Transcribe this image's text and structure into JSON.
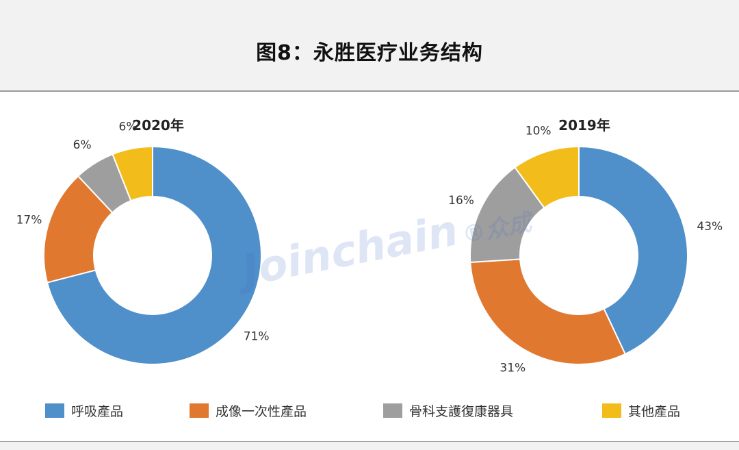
{
  "title": "图8：永胜医疗业务结构",
  "watermark": {
    "text": "Joinchain",
    "mark": "®众成"
  },
  "colors": {
    "blue": "#4f8fca",
    "orange": "#e1782f",
    "gray": "#9e9e9e",
    "yellow": "#f2bc1a"
  },
  "chart_data": [
    {
      "type": "pie",
      "title": "2020年",
      "categories": [
        "呼吸產品",
        "成像一次性產品",
        "骨科支護復康器具",
        "其他產品"
      ],
      "values": [
        71,
        17,
        6,
        6
      ],
      "labels": [
        "71%",
        "17%",
        "6%",
        "6%"
      ],
      "legend": "bottom"
    },
    {
      "type": "pie",
      "title": "2019年",
      "categories": [
        "呼吸產品",
        "成像一次性產品",
        "骨科支護復康器具",
        "其他產品"
      ],
      "values": [
        43,
        31,
        16,
        10
      ],
      "labels": [
        "43%",
        "31%",
        "16%",
        "10%"
      ],
      "legend": "bottom"
    }
  ],
  "legend": [
    {
      "label": "呼吸產品",
      "color": "#4f8fca"
    },
    {
      "label": "成像一次性產品",
      "color": "#e1782f"
    },
    {
      "label": "骨科支護復康器具",
      "color": "#9e9e9e"
    },
    {
      "label": "其他產品",
      "color": "#f2bc1a"
    }
  ]
}
